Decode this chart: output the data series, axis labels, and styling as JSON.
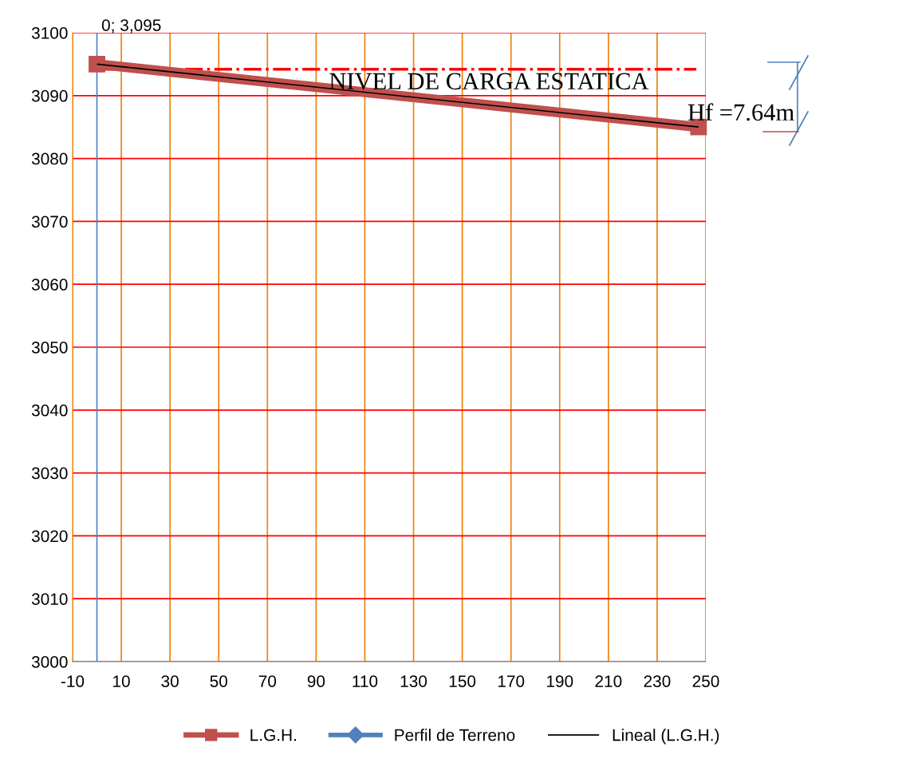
{
  "chart_data": {
    "type": "line",
    "x": [
      0,
      247
    ],
    "series": [
      {
        "name": "L.G.H.",
        "color": "#c0504d",
        "values": [
          3095,
          3085
        ],
        "marker": "square"
      },
      {
        "name": "Perfil de Terreno",
        "color": "#4f81bd",
        "values": [
          null,
          null
        ],
        "marker": "diamond"
      },
      {
        "name": "Lineal (L.G.H.)",
        "color": "#000000",
        "values": [
          3095,
          3085
        ],
        "marker": "none"
      }
    ],
    "xlim": [
      -10,
      250
    ],
    "xticks": [
      -10,
      10,
      30,
      50,
      70,
      90,
      110,
      130,
      150,
      170,
      190,
      210,
      230,
      250
    ],
    "ylim": [
      3000,
      3100
    ],
    "yticks": [
      3000,
      3010,
      3020,
      3030,
      3040,
      3050,
      3060,
      3070,
      3080,
      3090,
      3100
    ],
    "ref_lines": [
      {
        "axis": "y",
        "value": 3094.2,
        "label": "NIVEL DE CARGA ESTATICA",
        "color": "#ff0000",
        "line_style": "dashdot"
      },
      {
        "axis": "x",
        "value": 0,
        "color": "#4f81bd",
        "line_style": "solid"
      }
    ],
    "annotations": [
      {
        "text": "0; 3,095",
        "x": 0,
        "y": 3095
      },
      {
        "text": "Hf =7.64m",
        "x": 247,
        "y": 3085
      }
    ],
    "grid": true,
    "legend": "bottom",
    "line_style": "solid"
  }
}
